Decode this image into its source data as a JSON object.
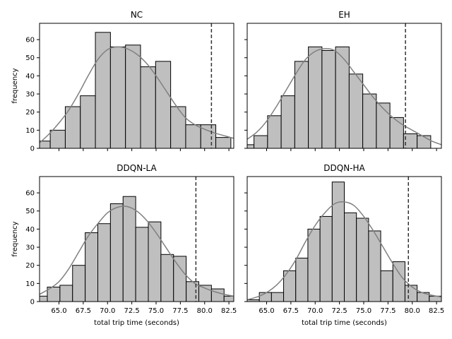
{
  "chart_data": [
    {
      "type": "bar",
      "title": "NC",
      "xlabel": "",
      "ylabel": "frequency",
      "xlim": [
        63.0,
        83.0
      ],
      "ylim": [
        0,
        69
      ],
      "xticks": [
        65.0,
        67.5,
        70.0,
        72.5,
        75.0,
        77.5,
        80.0,
        82.5
      ],
      "yticks": [
        0,
        10,
        20,
        30,
        40,
        50,
        60
      ],
      "show_xtick_labels": false,
      "show_ytick_labels": true,
      "bin_edges": [
        63.0,
        64.1,
        65.65,
        67.2,
        68.75,
        70.3,
        71.85,
        73.4,
        74.95,
        76.5,
        78.05,
        79.6,
        81.15,
        82.7
      ],
      "counts": [
        4,
        10,
        23,
        29,
        64,
        56,
        57,
        45,
        48,
        23,
        13,
        13,
        6
      ],
      "kde_x": [
        63,
        64,
        65,
        66,
        67,
        68,
        69,
        70,
        71,
        72,
        73,
        74,
        75,
        76,
        77,
        78,
        79,
        80,
        81,
        82,
        83
      ],
      "kde_y": [
        3,
        8,
        14,
        21,
        30,
        40,
        49,
        54.5,
        56,
        55,
        52,
        47,
        40,
        32,
        24,
        17,
        13,
        10.5,
        8.5,
        7,
        5.5
      ],
      "threshold": 80.7,
      "grid": false,
      "legend": false
    },
    {
      "type": "bar",
      "title": "EH",
      "xlabel": "",
      "ylabel": "",
      "xlim": [
        63.0,
        83.0
      ],
      "ylim": [
        0,
        69
      ],
      "xticks": [
        65.0,
        67.5,
        70.0,
        72.5,
        75.0,
        77.5,
        80.0,
        82.5
      ],
      "yticks": [
        0,
        10,
        20,
        30,
        40,
        50,
        60
      ],
      "show_xtick_labels": false,
      "show_ytick_labels": false,
      "bin_edges": [
        63.0,
        63.7,
        65.1,
        66.5,
        67.9,
        69.3,
        70.7,
        72.1,
        73.5,
        74.9,
        76.3,
        77.7,
        79.1,
        80.5,
        81.9
      ],
      "counts": [
        2,
        7,
        18,
        29,
        48,
        56,
        54,
        56,
        41,
        30,
        25,
        17,
        8,
        7
      ],
      "kde_x": [
        63,
        64,
        65,
        66,
        67,
        68,
        69,
        70,
        71,
        72,
        73,
        74,
        75,
        76,
        77,
        78,
        79,
        80,
        81,
        82,
        83
      ],
      "kde_y": [
        5,
        9,
        15,
        23,
        32,
        41,
        49,
        53.5,
        55,
        54,
        49,
        42,
        35,
        28,
        22,
        17,
        13,
        10,
        7,
        4,
        2
      ],
      "threshold": 79.3,
      "grid": false,
      "legend": false
    },
    {
      "type": "bar",
      "title": "DDQN-LA",
      "xlabel": "total trip time (seconds)",
      "ylabel": "frequency",
      "xlim": [
        63.0,
        83.0
      ],
      "ylim": [
        0,
        69
      ],
      "xticks": [
        65.0,
        67.5,
        70.0,
        72.5,
        75.0,
        77.5,
        80.0,
        82.5
      ],
      "yticks": [
        0,
        10,
        20,
        30,
        40,
        50,
        60
      ],
      "show_xtick_labels": true,
      "show_ytick_labels": true,
      "bin_edges": [
        63.0,
        63.8,
        65.1,
        66.4,
        67.7,
        69.0,
        70.3,
        71.6,
        72.9,
        74.2,
        75.5,
        76.8,
        78.1,
        79.4,
        80.7,
        82.0,
        83.0
      ],
      "counts": [
        3,
        8,
        9,
        20,
        38,
        43,
        54,
        58,
        41,
        44,
        26,
        25,
        11,
        9,
        7,
        3
      ],
      "kde_x": [
        63,
        64,
        65,
        66,
        67,
        68,
        69,
        70,
        71,
        72,
        73,
        74,
        75,
        76,
        77,
        78,
        79,
        80,
        81,
        82,
        83
      ],
      "kde_y": [
        4,
        7,
        11,
        18,
        27,
        36,
        43,
        49,
        52,
        52.5,
        50,
        45,
        38,
        30,
        22,
        15,
        10,
        7.5,
        5.5,
        4,
        3
      ],
      "threshold": 79.1,
      "grid": false,
      "legend": false
    },
    {
      "type": "bar",
      "title": "DDQN-HA",
      "xlabel": "total trip time (seconds)",
      "ylabel": "",
      "xlim": [
        63.0,
        83.0
      ],
      "ylim": [
        0,
        69
      ],
      "xticks": [
        65.0,
        67.5,
        70.0,
        72.5,
        75.0,
        77.5,
        80.0,
        82.5
      ],
      "yticks": [
        0,
        10,
        20,
        30,
        40,
        50,
        60
      ],
      "show_xtick_labels": true,
      "show_ytick_labels": false,
      "bin_edges": [
        63.0,
        64.25,
        65.5,
        66.75,
        68.0,
        69.25,
        70.5,
        71.75,
        73.0,
        74.25,
        75.5,
        76.75,
        78.0,
        79.25,
        80.5,
        81.75,
        83.0
      ],
      "counts": [
        1,
        5,
        5,
        17,
        24,
        40,
        47,
        66,
        49,
        46,
        39,
        17,
        22,
        9,
        5,
        3
      ],
      "kde_x": [
        63,
        64,
        65,
        66,
        67,
        68,
        69,
        70,
        71,
        72,
        73,
        74,
        75,
        76,
        77,
        78,
        79,
        80,
        81,
        82,
        83
      ],
      "kde_y": [
        1,
        2.5,
        5,
        9,
        15,
        23,
        33,
        42,
        49,
        54,
        55,
        53,
        47,
        39,
        30,
        21,
        13,
        8,
        5,
        3.5,
        2.5
      ],
      "threshold": 79.6,
      "grid": false,
      "legend": false
    }
  ],
  "colors": {
    "bar_fill": "#bfbfbf",
    "bar_edge": "#000000",
    "kde_line": "#808080",
    "threshold_line": "#333333"
  }
}
